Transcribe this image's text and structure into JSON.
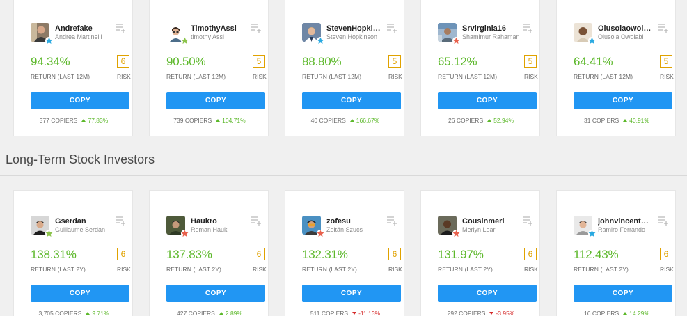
{
  "section_2_title": "Long-Term Stock Investors",
  "labels": {
    "copy": "COPY",
    "copiers": "COPIERS",
    "risk": "RISK",
    "return_12m": "RETURN (LAST 12M)",
    "return_2y": "RETURN (LAST 2Y)"
  },
  "colors": {
    "copy_button": "#2196f3",
    "gain": "#5cb82a",
    "risk": "#e0a200",
    "negative": "#d52b2b",
    "star_blue": "#29a9e1",
    "star_green": "#8bc34a",
    "star_red": "#e8604c"
  },
  "row1": [
    {
      "username": "Andrefake",
      "fullname": "Andrea Martinelli",
      "gain": "94.34%",
      "risk": "6",
      "copiers": "377",
      "change": "77.83%",
      "direction": "up",
      "star": "blue"
    },
    {
      "username": "TimothyAssi",
      "fullname": "timothy Assi",
      "gain": "90.50%",
      "risk": "5",
      "copiers": "739",
      "change": "104.71%",
      "direction": "up",
      "star": "green"
    },
    {
      "username": "StevenHopkinson",
      "fullname": "Steven Hopkinson",
      "gain": "88.80%",
      "risk": "5",
      "copiers": "40",
      "change": "166.67%",
      "direction": "up",
      "star": "blue"
    },
    {
      "username": "Srvirginia16",
      "fullname": "Shamimur Rahaman",
      "gain": "65.12%",
      "risk": "5",
      "copiers": "26",
      "change": "52.94%",
      "direction": "up",
      "star": "red"
    },
    {
      "username": "Olusolaowolabi",
      "fullname": "Olusola Owolabi",
      "gain": "64.41%",
      "risk": "5",
      "copiers": "31",
      "change": "40.91%",
      "direction": "up",
      "star": "blue"
    }
  ],
  "row2": [
    {
      "username": "Gserdan",
      "fullname": "Guillaume Serdan",
      "gain": "138.31%",
      "risk": "6",
      "copiers": "3,705",
      "change": "9.71%",
      "direction": "up",
      "star": "green"
    },
    {
      "username": "Haukro",
      "fullname": "Roman Hauk",
      "gain": "137.83%",
      "risk": "6",
      "copiers": "427",
      "change": "2.89%",
      "direction": "up",
      "star": "red"
    },
    {
      "username": "zofesu",
      "fullname": "Zoltán Szucs",
      "gain": "132.31%",
      "risk": "6",
      "copiers": "511",
      "change": "-11.13%",
      "direction": "down",
      "star": "red"
    },
    {
      "username": "Cousinmerl",
      "fullname": "Merlyn Lear",
      "gain": "131.97%",
      "risk": "6",
      "copiers": "292",
      "change": "-3.95%",
      "direction": "down",
      "star": "red"
    },
    {
      "username": "johnvincentmarco",
      "fullname": "Ramiro Ferrando",
      "gain": "112.43%",
      "risk": "6",
      "copiers": "16",
      "change": "14.29%",
      "direction": "up",
      "star": "blue"
    }
  ]
}
